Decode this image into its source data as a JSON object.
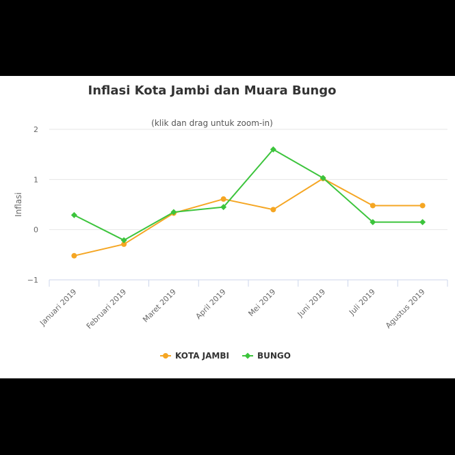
{
  "chart_data": {
    "type": "line",
    "title": "Inflasi Kota Jambi dan Muara Bungo",
    "subtitle": "(klik dan drag untuk zoom-in)",
    "xlabel": "",
    "ylabel": "Inflasi",
    "categories": [
      "Januari 2019",
      "Februari 2019",
      "Maret 2019",
      "April 2019",
      "Mei 2019",
      "Juni 2019",
      "Juli 2019",
      "Agustus 2019"
    ],
    "ylim": [
      -1,
      2
    ],
    "yticks": [
      "−1",
      "0",
      "1",
      "2"
    ],
    "grid": true,
    "legend_position": "bottom",
    "series": [
      {
        "name": "KOTA JAMBI",
        "color": "#f5a623",
        "marker": "circle",
        "values": [
          -0.52,
          -0.29,
          0.33,
          0.61,
          0.4,
          1.02,
          0.48,
          0.48
        ]
      },
      {
        "name": "BUNGO",
        "color": "#3cc43c",
        "marker": "diamond",
        "values": [
          0.29,
          -0.21,
          0.35,
          0.45,
          1.6,
          1.03,
          0.15,
          0.15
        ]
      }
    ]
  }
}
